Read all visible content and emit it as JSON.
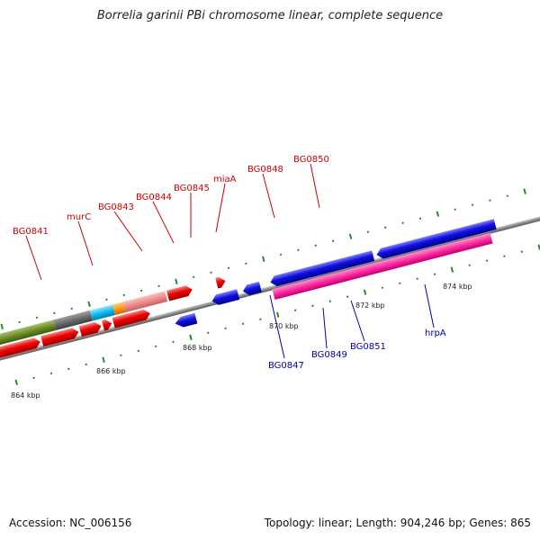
{
  "title": "Borrelia garinii PBi chromosome linear, complete sequence",
  "footer": {
    "accession": "Accession: NC_006156",
    "summary": "Topology: linear; Length: 904,246 bp; Genes: 865"
  },
  "colors": {
    "forward": "#ee0000",
    "reverse": "#1010e0",
    "forward_label": "#cc0000",
    "reverse_label": "#0000aa",
    "backbone": "#888888",
    "tick": "#2a8a2a"
  },
  "scale_labels": [
    "864 kbp",
    "866 kbp",
    "868 kbp",
    "870 kbp",
    "872 kbp",
    "874 kbp"
  ],
  "forward_labels": [
    "BG0841",
    "murC",
    "BG0843",
    "BG0844",
    "BG0845",
    "miaA",
    "BG0848",
    "BG0850"
  ],
  "reverse_labels": [
    "BG0847",
    "BG0849",
    "BG0851",
    "hrpA"
  ]
}
